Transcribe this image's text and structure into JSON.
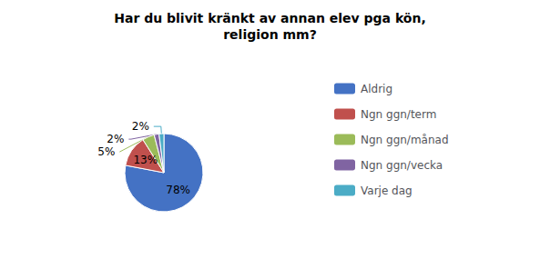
{
  "chart_data": {
    "type": "pie",
    "title": "Har du blivit kränkt av annan elev pga kön,\nreligion mm?",
    "categories": [
      "Aldrig",
      "Ngn ggn/term",
      "Ngn ggn/månad",
      "Ngn ggn/vecka",
      "Varje dag"
    ],
    "values": [
      78,
      13,
      5,
      2,
      2
    ],
    "value_labels": [
      "78%",
      "13%",
      "5%",
      "2%",
      "2%"
    ],
    "colors": [
      "#4472C4",
      "#C0504D",
      "#9BBB59",
      "#8064A2",
      "#4BACC6"
    ],
    "data_labels": true,
    "legend": "right"
  }
}
